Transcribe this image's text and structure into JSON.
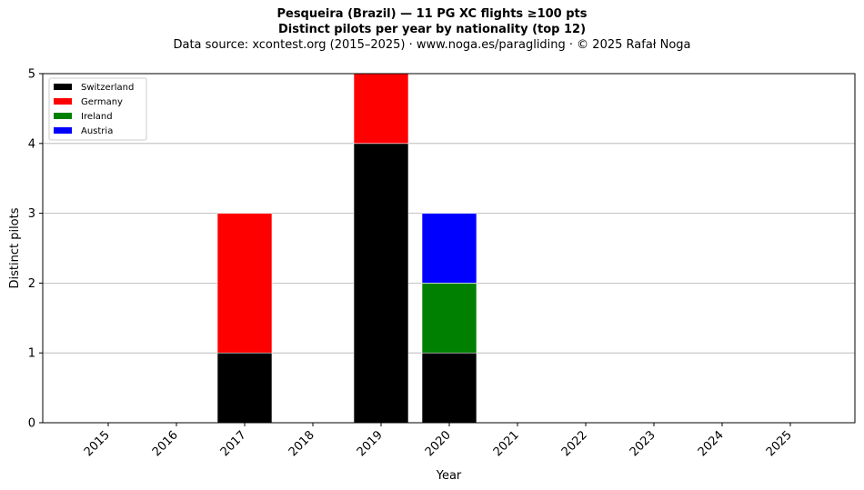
{
  "title_line1": "Pesqueira (Brazil)  —  11 PG XC flights ≥100 pts",
  "title_line2": "Distinct pilots per year by nationality (top 12)",
  "title_line3": "Data source: xcontest.org (2015–2025)  ·  www.noga.es/paragliding  ·  © 2025 Rafał Noga",
  "chart_data": {
    "type": "bar",
    "stacked": true,
    "categories": [
      "2015",
      "2016",
      "2017",
      "2018",
      "2019",
      "2020",
      "2021",
      "2022",
      "2023",
      "2024",
      "2025"
    ],
    "series": [
      {
        "name": "Switzerland",
        "color": "#000000",
        "values": [
          0,
          0,
          1,
          0,
          4,
          1,
          0,
          0,
          0,
          0,
          0
        ]
      },
      {
        "name": "Germany",
        "color": "#ff0000",
        "values": [
          0,
          0,
          2,
          0,
          1,
          0,
          0,
          0,
          0,
          0,
          0
        ]
      },
      {
        "name": "Ireland",
        "color": "#008000",
        "values": [
          0,
          0,
          0,
          0,
          0,
          1,
          0,
          0,
          0,
          0,
          0
        ]
      },
      {
        "name": "Austria",
        "color": "#0000ff",
        "values": [
          0,
          0,
          0,
          0,
          0,
          1,
          0,
          0,
          0,
          0,
          0
        ]
      }
    ],
    "xlabel": "Year",
    "ylabel": "Distinct pilots",
    "ylim": [
      0,
      5
    ],
    "yticks": [
      "0",
      "1",
      "2",
      "3",
      "4",
      "5"
    ],
    "grid": "horizontal",
    "legend_position": "top-left"
  }
}
